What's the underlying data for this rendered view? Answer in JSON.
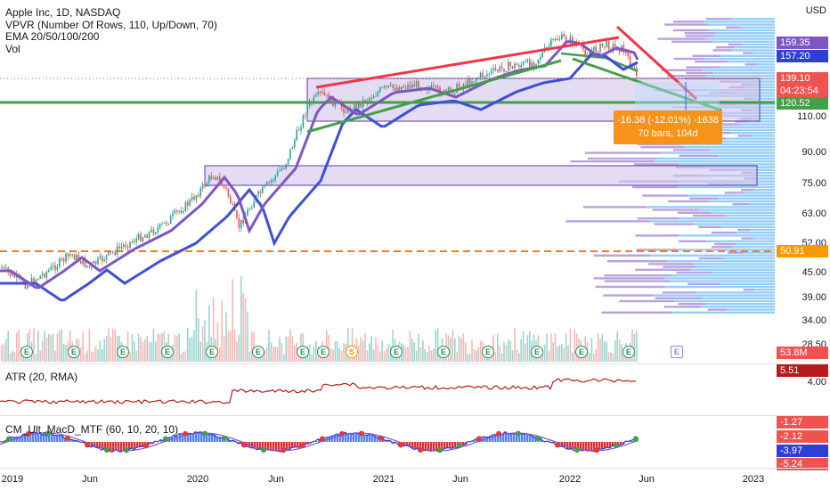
{
  "legend": {
    "symbol": "Apple Inc, 1D, NASDAQ",
    "vpvr": "VPVR (Number Of Rows, 110, Up/Down, 70)",
    "ema": "EMA 20/50/100/200",
    "vol": "Vol"
  },
  "currency": "USD",
  "price_axis": {
    "ticks": [
      "110.00",
      "90.00",
      "75.00",
      "63.00",
      "52.00",
      "45.00",
      "39.00",
      "34.00",
      "28.50"
    ],
    "badges": {
      "ema20": {
        "value": "159.35",
        "color": "#7e57c2"
      },
      "ema50": {
        "value": "157.20",
        "color": "#2f3fd6"
      },
      "last": {
        "value": "139.10",
        "color": "#ef5350"
      },
      "countdown": {
        "value": "04:23:54",
        "color": "#ef5350"
      },
      "ema100": {
        "value": "120.52",
        "color": "#43a047"
      },
      "ema200": {
        "value": "50.91",
        "color": "#ff9800"
      },
      "volume": {
        "value": "53.8M",
        "color": "#ef5350"
      }
    }
  },
  "measure_callout": {
    "line1": "-16.38 (-12.01%) -1638",
    "line2": "70 bars, 104d"
  },
  "atr": {
    "label": "ATR (20, RMA)",
    "badge": "5.51",
    "badge_color": "#b71c1c",
    "tick": "4.00"
  },
  "macd": {
    "label": "CM_Ult_MacD_MTF (60, 10, 20, 10)",
    "badges": [
      {
        "value": "-1.27",
        "color": "#ef5350"
      },
      {
        "value": "-2.12",
        "color": "#ef5350"
      },
      {
        "value": "-3.97",
        "color": "#2f3fd6"
      },
      {
        "value": "-5.24",
        "color": "#ef5350"
      }
    ]
  },
  "time_axis": [
    "2019",
    "Jun",
    "2020",
    "Jun",
    "2021",
    "Jun",
    "2022",
    "Jun",
    "2023"
  ],
  "earnings_markers": [
    "E",
    "E",
    "E",
    "E",
    "E",
    "E",
    "E",
    "E",
    "S",
    "E",
    "E",
    "E",
    "E",
    "E",
    "E",
    "E"
  ],
  "future_marker": "E",
  "colors": {
    "up": "#26a69a",
    "down": "#ef5350",
    "ema20": "#7e57c2",
    "ema50": "#2f3fd6",
    "ema100": "#43a047",
    "ema200": "#ff9800",
    "trendline": "#f23645",
    "rect_fill": "#d1c4e9",
    "rect_border": "#5e35b1"
  }
}
